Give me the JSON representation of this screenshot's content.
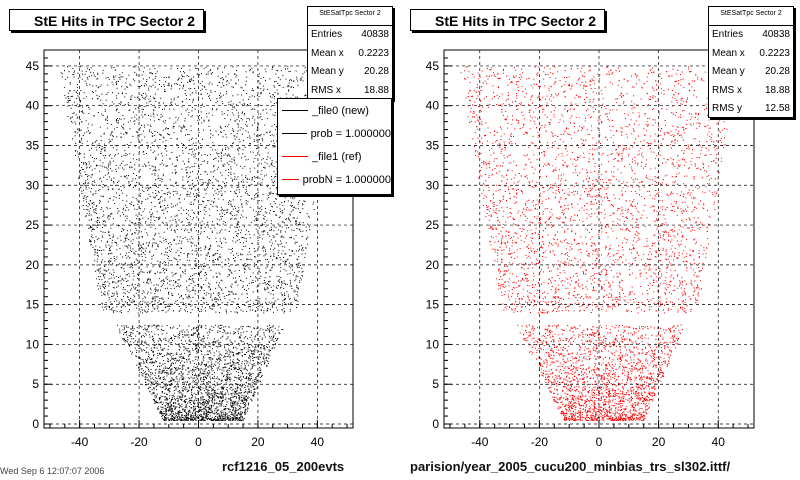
{
  "colors": {
    "left_points": "#000000",
    "right_points": "#ff0000",
    "axis": "#000000",
    "grid": "#000000"
  },
  "panels": [
    {
      "title": "StE Hits in TPC Sector 2",
      "stats": {
        "name": "StESatTpc Sector 2",
        "rows": [
          [
            "Entries",
            "40838"
          ],
          [
            "Mean x",
            "0.2223"
          ],
          [
            "Mean y",
            "20.28"
          ],
          [
            "RMS x",
            "18.88"
          ]
        ]
      },
      "caption": "rcf1216_05_200evts"
    },
    {
      "title": "StE Hits in TPC Sector 2",
      "stats": {
        "name": "StESatTpc Sector 2",
        "rows": [
          [
            "Entries",
            "40838"
          ],
          [
            "Mean x",
            "0.2223"
          ],
          [
            "Mean y",
            "20.28"
          ],
          [
            "RMS x",
            "18.88"
          ],
          [
            "RMS y",
            "12.58"
          ]
        ]
      },
      "caption": "parision/year_2005_cucu200_minbias_trs_sl302.ittf/"
    }
  ],
  "legend": [
    {
      "label": "_file0 (new)",
      "color": "#000000"
    },
    {
      "label": "prob = 1.000000",
      "color": "#000000"
    },
    {
      "label": "_file1 (ref)",
      "color": "#ff0000"
    },
    {
      "label": "probN = 1.000000",
      "color": "#ff0000"
    }
  ],
  "corner_note": "Wed Sep  6 12:07:07 2006",
  "chart_data": [
    {
      "type": "scatter",
      "title": "StE Hits in TPC Sector 2",
      "xlabel": "",
      "ylabel": "",
      "series": [
        {
          "name": "_file0 (new)",
          "color": "#000000"
        }
      ],
      "xlim": [
        -52,
        52
      ],
      "ylim": [
        -0.5,
        47
      ],
      "xticks": [
        -40,
        -20,
        0,
        20,
        40
      ],
      "yticks": [
        0,
        5,
        10,
        15,
        20,
        25,
        30,
        35,
        40,
        45
      ],
      "tick_labels_x": [
        "-40",
        "-20",
        "0",
        "20",
        "40"
      ],
      "tick_labels_y": [
        "0",
        "5",
        "10",
        "15",
        "20",
        "25",
        "30",
        "35",
        "40",
        "45"
      ],
      "grid": true,
      "legend": "top-right",
      "extent_rows": [
        [
          0.5,
          -12,
          15
        ],
        [
          12.5,
          -28,
          29
        ],
        [
          14.5,
          -33,
          33
        ],
        [
          45,
          -47,
          47
        ]
      ],
      "gap_rows": [
        12.5,
        14
      ]
    },
    {
      "type": "scatter",
      "title": "StE Hits in TPC Sector 2",
      "xlabel": "",
      "ylabel": "",
      "series": [
        {
          "name": "_file1 (ref)",
          "color": "#ff0000"
        }
      ],
      "xlim": [
        -52,
        52
      ],
      "ylim": [
        -0.5,
        47
      ],
      "xticks": [
        -40,
        -20,
        0,
        20,
        40
      ],
      "yticks": [
        0,
        5,
        10,
        15,
        20,
        25,
        30,
        35,
        40,
        45
      ],
      "tick_labels_x": [
        "-40",
        "-20",
        "0",
        "20",
        "40"
      ],
      "tick_labels_y": [
        "0",
        "5",
        "10",
        "15",
        "20",
        "25",
        "30",
        "35",
        "40",
        "45"
      ],
      "grid": true,
      "legend": "none",
      "extent_rows": [
        [
          0.5,
          -12,
          15
        ],
        [
          12.5,
          -28,
          29
        ],
        [
          14.5,
          -33,
          33
        ],
        [
          45,
          -47,
          47
        ]
      ],
      "gap_rows": [
        12.5,
        14
      ]
    }
  ]
}
